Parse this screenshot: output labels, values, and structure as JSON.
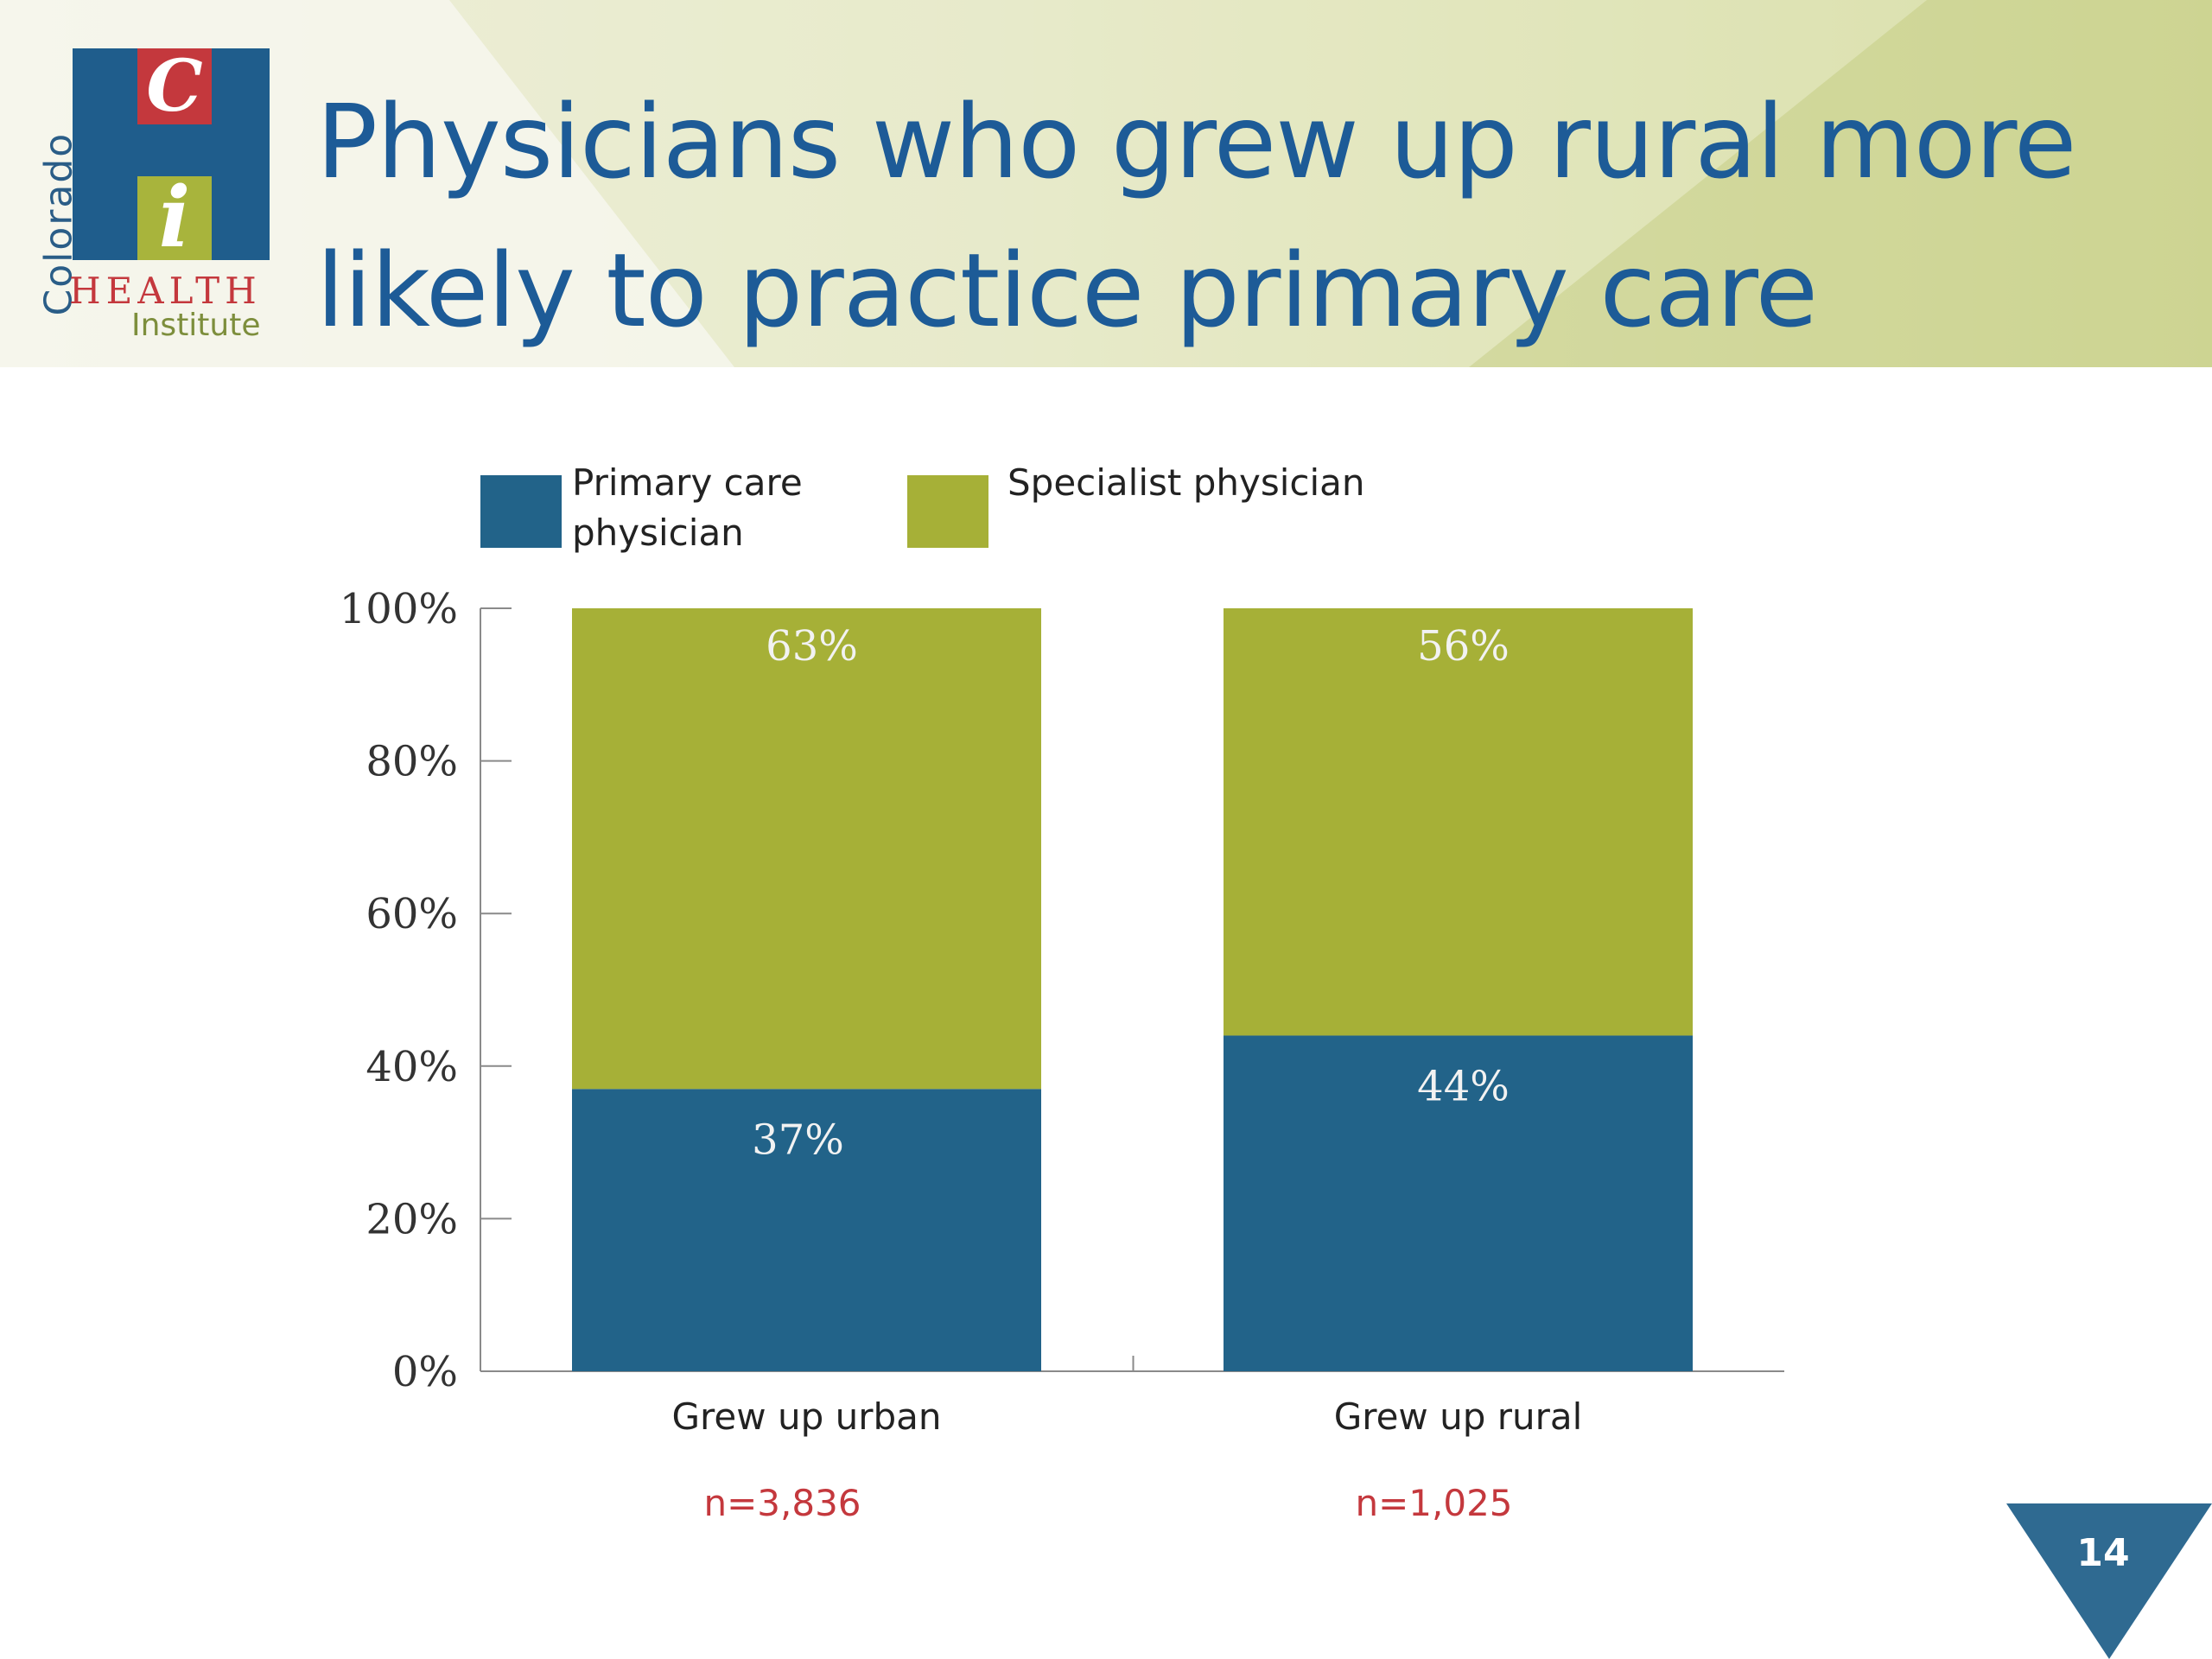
{
  "header": {
    "title_line1": "Physicians who grew up rural more",
    "title_line2": "likely to practice primary care",
    "logo": {
      "colorado": "Colorado",
      "c": "C",
      "i": "i",
      "health": "HEALTH",
      "institute": "Institute"
    }
  },
  "legend": {
    "primary": "Primary care physician",
    "specialist": "Specialist physician"
  },
  "colors": {
    "primary": "#226389",
    "specialist": "#a6b037",
    "title": "#1d5b97",
    "n_label": "#c4383d",
    "slide_badge": "#2f6a91"
  },
  "chart_data": {
    "type": "bar",
    "stacked": true,
    "categories": [
      "Grew up urban",
      "Grew up rural"
    ],
    "series": [
      {
        "name": "Primary care physician",
        "values": [
          37,
          44
        ],
        "labels": [
          "37%",
          "44%"
        ]
      },
      {
        "name": "Specialist physician",
        "values": [
          63,
          56
        ],
        "labels": [
          "63%",
          "56%"
        ]
      }
    ],
    "sample_sizes": [
      "n=3,836",
      "n=1,025"
    ],
    "ylim": [
      0,
      100
    ],
    "yticks": [
      0,
      20,
      40,
      60,
      80,
      100
    ],
    "ytick_labels": [
      "0%",
      "20%",
      "40%",
      "60%",
      "80%",
      "100%"
    ],
    "title": "",
    "xlabel": "",
    "ylabel": "",
    "legend_position": "top",
    "grid": false
  },
  "slide_number": "14"
}
